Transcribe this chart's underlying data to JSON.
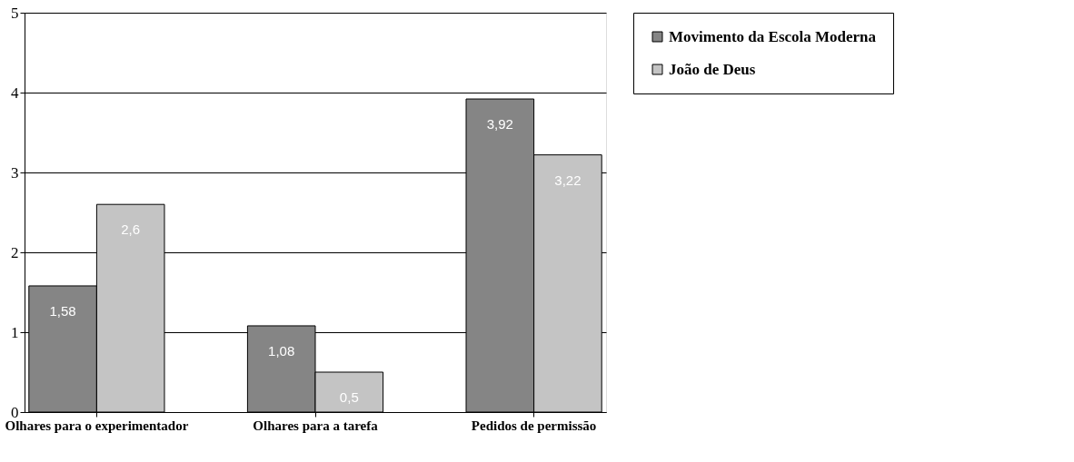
{
  "chart_data": {
    "type": "bar",
    "categories": [
      "Olhares para o experimentador",
      "Olhares para a tarefa",
      "Pedidos de permissão"
    ],
    "series": [
      {
        "name": "Movimento da Escola Moderna",
        "color": "#858585",
        "values": [
          1.58,
          1.08,
          3.92
        ],
        "value_labels": [
          "1,58",
          "1,08",
          "3,92"
        ]
      },
      {
        "name": "João de Deus",
        "color": "#c4c4c4",
        "values": [
          2.6,
          0.5,
          3.22
        ],
        "value_labels": [
          "2,6",
          "0,5",
          "3,22"
        ]
      }
    ],
    "ylim": [
      0,
      5
    ],
    "yticks": [
      0,
      1,
      2,
      3,
      4,
      5
    ],
    "grid": "y",
    "legend": "right"
  }
}
